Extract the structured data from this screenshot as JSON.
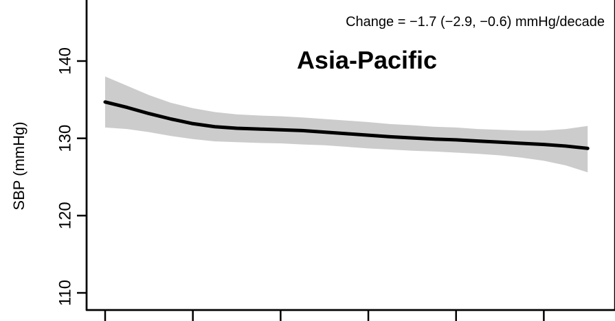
{
  "chart_data": {
    "type": "line",
    "ylabel": "SBP (mmHg)",
    "ylim": [
      106,
      147
    ],
    "xlim": [
      0,
      5.6
    ],
    "yticks": [
      110,
      120,
      130,
      140
    ],
    "ytick_labels": [
      "110",
      "120",
      "130",
      "140"
    ],
    "xticks": [
      0,
      1,
      2,
      3,
      4,
      5
    ],
    "xtick_labels": [
      "",
      "",
      "",
      "",
      "",
      ""
    ],
    "annotation": "Change = −1.7 (−2.9, −0.6) mmHg/decade",
    "panel_title": "Asia-Pacific",
    "grid": false,
    "series": [
      {
        "x": [
          0.0,
          0.25,
          0.5,
          0.75,
          1.0,
          1.25,
          1.5,
          1.75,
          2.0,
          2.25,
          2.5,
          2.75,
          3.0,
          3.25,
          3.5,
          3.75,
          4.0,
          4.25,
          4.5,
          4.75,
          5.0,
          5.25,
          5.5
        ],
        "values": [
          134.7,
          134.0,
          133.2,
          132.5,
          131.9,
          131.5,
          131.3,
          131.2,
          131.1,
          131.0,
          130.8,
          130.6,
          130.4,
          130.2,
          130.05,
          129.9,
          129.8,
          129.65,
          129.5,
          129.35,
          129.2,
          129.0,
          128.7
        ],
        "lower": [
          131.4,
          131.2,
          130.8,
          130.3,
          129.9,
          129.6,
          129.5,
          129.4,
          129.35,
          129.2,
          129.1,
          128.9,
          128.7,
          128.55,
          128.4,
          128.3,
          128.15,
          128.0,
          127.8,
          127.5,
          127.1,
          126.5,
          125.6
        ],
        "upper": [
          138.0,
          136.8,
          135.6,
          134.6,
          133.9,
          133.4,
          133.1,
          132.95,
          132.85,
          132.7,
          132.5,
          132.3,
          132.1,
          131.85,
          131.7,
          131.5,
          131.4,
          131.2,
          131.1,
          131.0,
          131.0,
          131.2,
          131.6
        ]
      }
    ],
    "colors": {
      "line": "#000000",
      "band": "#cccccc"
    }
  }
}
